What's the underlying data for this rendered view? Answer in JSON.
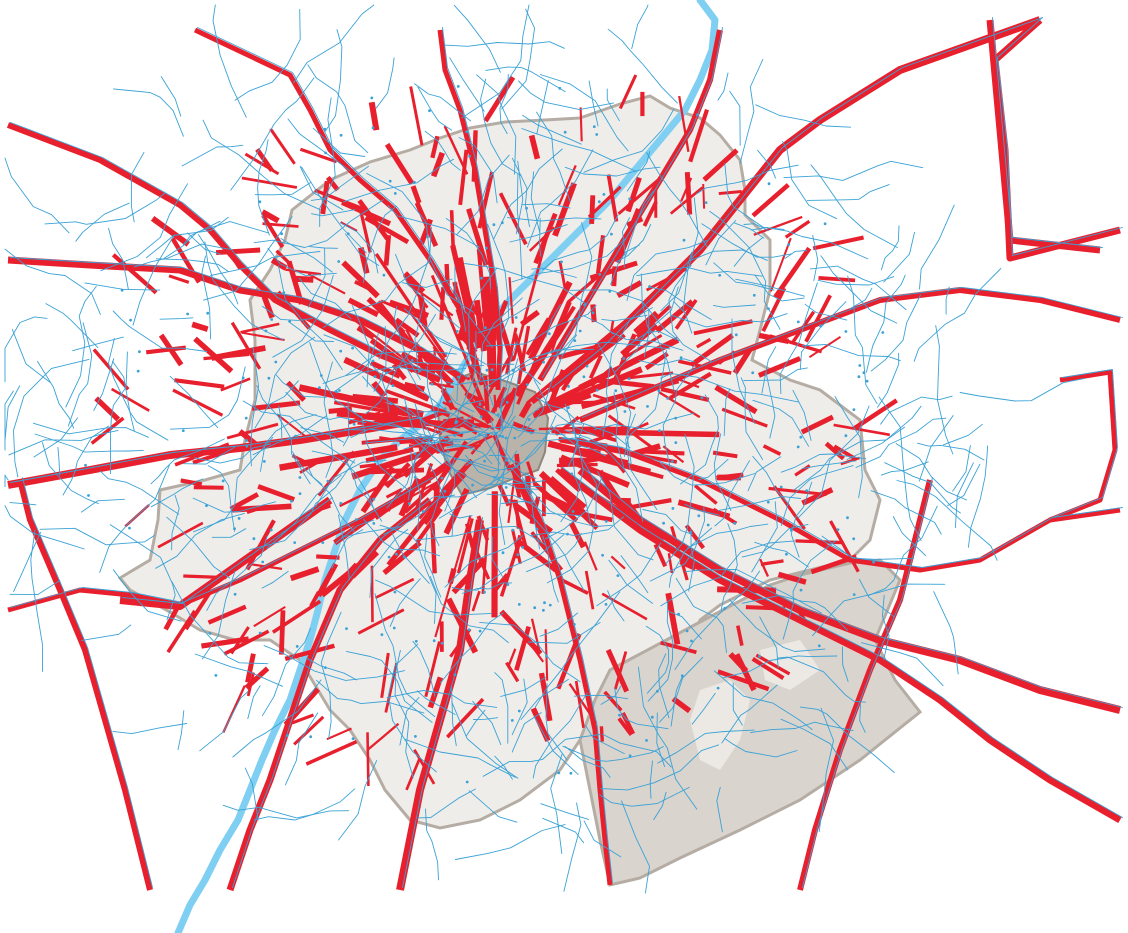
{
  "map": {
    "colors": {
      "background": "#ffffff",
      "region_fill": "#efedea",
      "region_outline": "#b5ada4",
      "center_fill": "#b9b3aa",
      "forest_fill": "#d9d4ce",
      "river": "#7fcff2",
      "red_segments": "#e8202e",
      "blue_network": "#3aa2d6"
    },
    "layers": [
      "region-outline",
      "forest-area",
      "city-center",
      "river",
      "red-segments",
      "blue-network"
    ],
    "legend": null,
    "labels": []
  }
}
